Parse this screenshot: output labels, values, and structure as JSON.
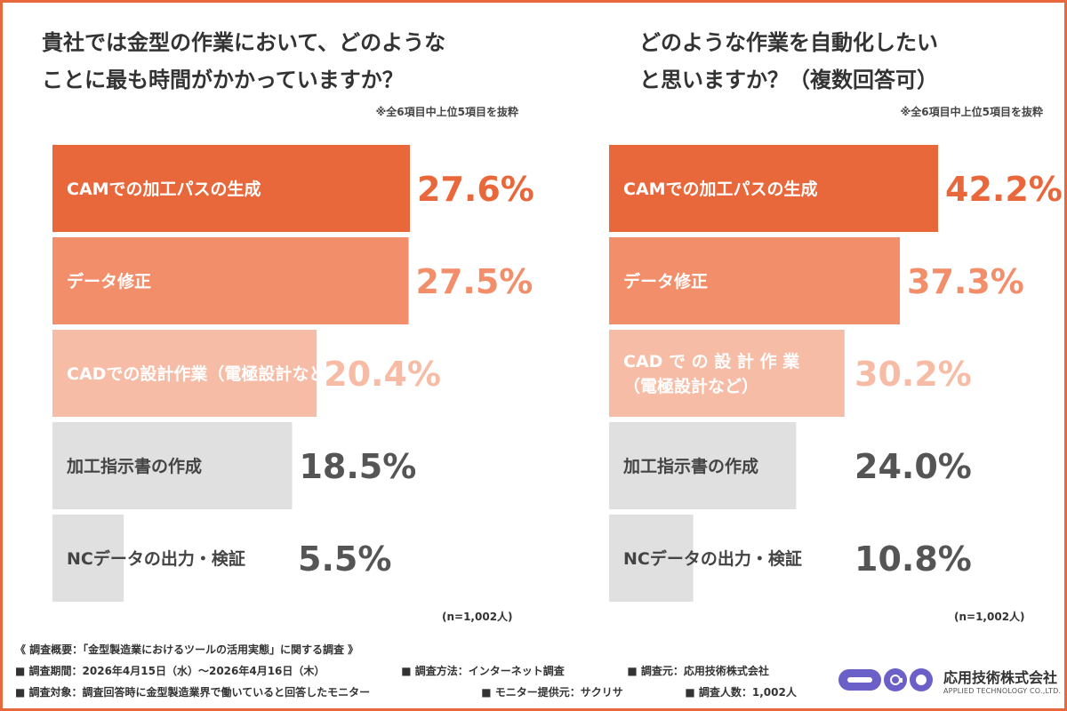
{
  "left": {
    "title_lines": [
      "貴社では金型の作業において、どのような",
      "ことに最も時間がかかっていますか？"
    ],
    "note": "※全6項目中上位5項目を抜粋",
    "n_label": "(n=1,002人)"
  },
  "right": {
    "title_lines": [
      "どのような作業を自動化したい",
      "と思いますか？（複数回答可）"
    ],
    "note": "※全6項目中上位5項目を抜粋",
    "n_label": "(n=1,002人)"
  },
  "colors": {
    "border": "#E8683B",
    "bars": [
      "#E8683B",
      "#F28E6A",
      "#F7BCA6",
      "#E0E0E0",
      "#E0E0E0"
    ],
    "values": [
      "#E8683B",
      "#F28E6A",
      "#F7BCA6",
      "#555555",
      "#555555"
    ]
  },
  "chart_data": [
    {
      "type": "bar",
      "orientation": "horizontal",
      "categories": [
        "CAMでの加工パスの生成",
        "データ修正",
        "CADでの設計作業（電極設計など）",
        "加工指示書の作成",
        "NCデータの出力・検証"
      ],
      "values": [
        27.6,
        27.5,
        20.4,
        18.5,
        5.5
      ],
      "value_labels": [
        "27.6%",
        "27.5%",
        "20.4%",
        "18.5%",
        "5.5%"
      ],
      "unit": "%"
    },
    {
      "type": "bar",
      "orientation": "horizontal",
      "categories": [
        "CAMでの加工パスの生成",
        "データ修正",
        "CAD で の 設 計 作 業\n（電極設計など）",
        "加工指示書の作成",
        "NCデータの出力・検証"
      ],
      "values": [
        42.2,
        37.3,
        30.2,
        24.0,
        10.8
      ],
      "value_labels": [
        "42.2%",
        "37.3%",
        "30.2%",
        "24.0%",
        "10.8%"
      ],
      "unit": "%"
    }
  ],
  "footer": {
    "heading": "《 調査概要：「金型製造業におけるツールの活用実態」に関する調査 》",
    "period": "■ 調査期間：2026年4月15日（水）〜2026年4月16日（木）",
    "method": "■ 調査方法：インターネット調査",
    "source": "■ 調査元：応用技術株式会社",
    "target": "■ 調査対象：調査回答時に金型製造業界で働いていると回答したモニター",
    "provider": "■ モニター提供元：サクリサ",
    "count": "■ 調査人数：1,002人"
  },
  "logo": {
    "company": "応用技術株式会社",
    "sub": "APPLIED TECHNOLOGY CO.,LTD."
  }
}
